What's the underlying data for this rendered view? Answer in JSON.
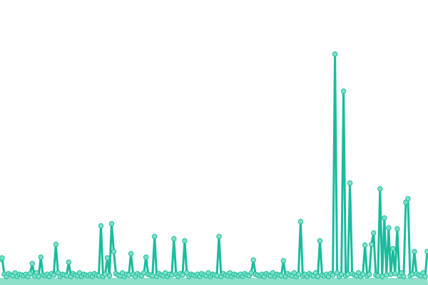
{
  "chart_data": {
    "type": "line",
    "title": "",
    "xlabel": "",
    "ylabel": "",
    "grid": false,
    "legend": "none",
    "axes_visible": false,
    "ylim": [
      0,
      400
    ],
    "colors": {
      "line": "#1abc9c",
      "marker_fill": "#7fe0c8",
      "marker_stroke": "#1abc9c",
      "area": "#8ee0cb"
    },
    "values": [
      36,
      38,
      15,
      12,
      16,
      14,
      13,
      17,
      12,
      15,
      14,
      13,
      15,
      12,
      16,
      30,
      13,
      17,
      12,
      39,
      14,
      13,
      15,
      12,
      16,
      14,
      57,
      17,
      12,
      15,
      14,
      13,
      32,
      12,
      16,
      14,
      13,
      17,
      12,
      15,
      14,
      13,
      15,
      12,
      16,
      14,
      13,
      83,
      12,
      15,
      38,
      13,
      86,
      47,
      16,
      14,
      13,
      17,
      12,
      15,
      14,
      44,
      15,
      12,
      16,
      14,
      13,
      17,
      39,
      15,
      14,
      13,
      68,
      12,
      16,
      14,
      13,
      17,
      12,
      15,
      14,
      65,
      15,
      12,
      16,
      14,
      62,
      17,
      12,
      15,
      14,
      13,
      15,
      12,
      16,
      14,
      13,
      17,
      12,
      15,
      14,
      13,
      68,
      12,
      16,
      14,
      13,
      17,
      12,
      15,
      14,
      13,
      15,
      12,
      16,
      14,
      13,
      17,
      35,
      15,
      14,
      13,
      15,
      12,
      16,
      14,
      13,
      17,
      12,
      15,
      14,
      13,
      34,
      12,
      16,
      14,
      13,
      17,
      12,
      15,
      89,
      13,
      15,
      12,
      16,
      14,
      13,
      17,
      12,
      62,
      14,
      13,
      15,
      12,
      16,
      14,
      324,
      17,
      12,
      15,
      272,
      13,
      15,
      143,
      16,
      14,
      13,
      17,
      12,
      15,
      56,
      13,
      15,
      57,
      73,
      14,
      13,
      135,
      12,
      94,
      14,
      80,
      15,
      51,
      16,
      79,
      13,
      17,
      12,
      116,
      121,
      13,
      15,
      47,
      16,
      14,
      13,
      17,
      12,
      47
    ]
  }
}
